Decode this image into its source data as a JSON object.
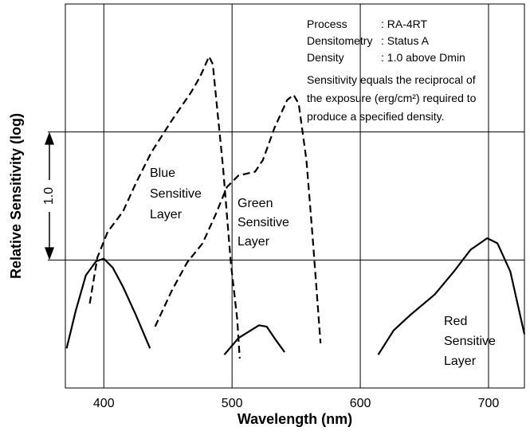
{
  "chart_data": {
    "type": "line",
    "x_label": "Wavelength (nm)",
    "y_label": "Relative Sensitivity (log)",
    "xlim": [
      370,
      728
    ],
    "ylim": [
      -1,
      2
    ],
    "xticks": [
      400,
      500,
      600,
      700
    ],
    "ygrid": [
      0,
      1
    ],
    "grid": true,
    "scale_marker": {
      "value": 1,
      "label": "1.0"
    },
    "info": [
      {
        "key": "Process",
        "value": ": RA-4RT"
      },
      {
        "key": "Densitometry",
        "value": ": Status A"
      },
      {
        "key": "Density",
        "value": ": 1.0 above Dmin"
      }
    ],
    "note": [
      "Sensitivity equals the reciprocal of",
      "the exposure (erg/cm²) required to",
      "produce a specified density."
    ],
    "series": [
      {
        "name": [
          "Blue",
          "Sensitive",
          "Layer"
        ],
        "color": "#000000",
        "dashed": true,
        "x": [
          389,
          395,
          403,
          415,
          425,
          437,
          453,
          468,
          475,
          479,
          482,
          485,
          488,
          493,
          499,
          504,
          506
        ],
        "values": [
          -0.34,
          0.02,
          0.22,
          0.38,
          0.6,
          0.84,
          1.09,
          1.31,
          1.43,
          1.52,
          1.59,
          1.53,
          1.22,
          0.72,
          -0.02,
          -0.46,
          -0.77
        ]
      },
      {
        "name": [
          "Green",
          "Sensitive",
          "Layer"
        ],
        "color": "#000000",
        "dashed": true,
        "x": [
          440,
          453,
          465,
          477,
          487,
          496,
          505,
          518,
          524,
          533,
          543,
          548,
          552,
          558,
          563,
          569
        ],
        "values": [
          -0.52,
          -0.24,
          -0.02,
          0.13,
          0.35,
          0.57,
          0.66,
          0.69,
          0.78,
          1.03,
          1.25,
          1.29,
          1.22,
          0.78,
          0.16,
          -0.65
        ]
      },
      {
        "name": [
          "Red",
          "Sensitive",
          "Layer"
        ],
        "color": "#000000",
        "dashed": false,
        "x": [
          371,
          378,
          386,
          394,
          400,
          407,
          415,
          425,
          436,
          null,
          494,
          505,
          521,
          527,
          533,
          541,
          null,
          614,
          626,
          639,
          658,
          673,
          686,
          699,
          707,
          717,
          728
        ],
        "values": [
          -0.69,
          -0.4,
          -0.12,
          -0.01,
          0.01,
          -0.06,
          -0.21,
          -0.43,
          -0.69,
          null,
          -0.74,
          -0.61,
          -0.51,
          -0.52,
          -0.61,
          -0.72,
          null,
          -0.74,
          -0.55,
          -0.43,
          -0.27,
          -0.09,
          0.08,
          0.17,
          0.13,
          -0.09,
          -0.58
        ]
      }
    ]
  }
}
